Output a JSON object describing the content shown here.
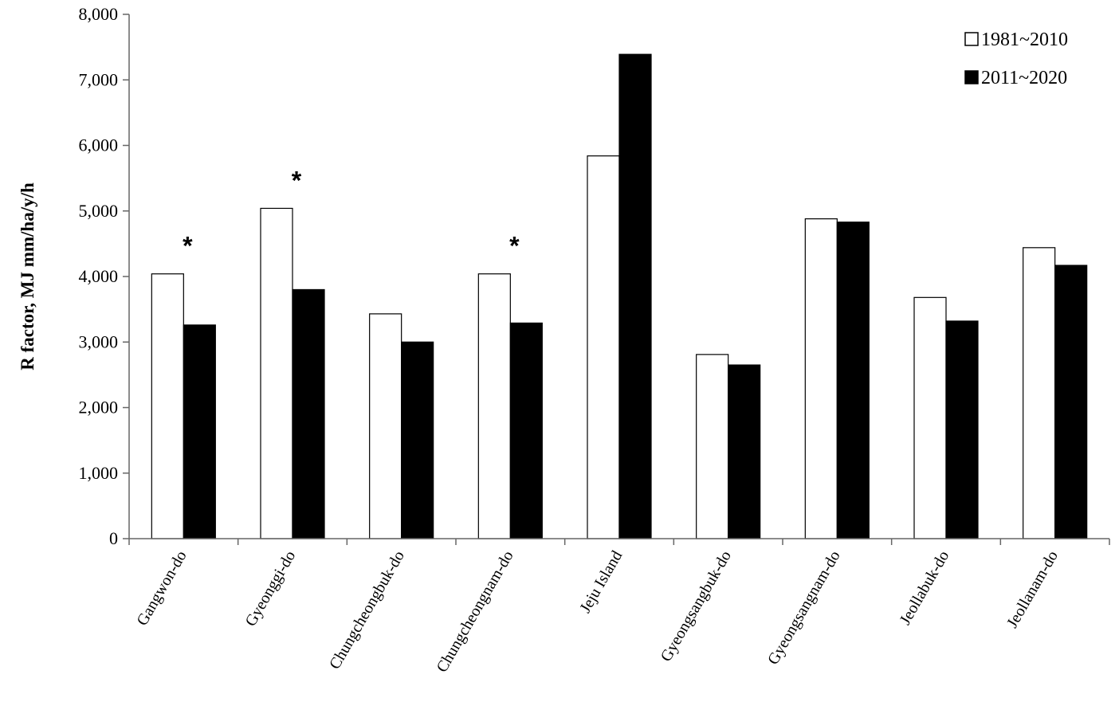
{
  "chart_data": {
    "type": "bar",
    "ylabel": "R factor, MJ mm/ha/y/h",
    "ylim": [
      0,
      8000
    ],
    "yticks": [
      0,
      1000,
      2000,
      3000,
      4000,
      5000,
      6000,
      7000,
      8000
    ],
    "ytick_labels": [
      "0",
      "1,000",
      "2,000",
      "3,000",
      "4,000",
      "5,000",
      "6,000",
      "7,000",
      "8,000"
    ],
    "categories": [
      "Gangwon-do",
      "Gyeonggi-do",
      "Chungcheongbuk-do",
      "Chungcheongnam-do",
      "Jeju Island",
      "Gyeongsangbuk-do",
      "Gyeongsangnam-do",
      "Jeollabuk-do",
      "Jeollanam-do"
    ],
    "series": [
      {
        "name": "1981~2010",
        "color": "#ffffff",
        "values": [
          4040,
          5040,
          3430,
          4040,
          5840,
          2810,
          4880,
          3680,
          4440
        ]
      },
      {
        "name": "2011~2020",
        "color": "#000000",
        "values": [
          3260,
          3800,
          3000,
          3290,
          7390,
          2650,
          4830,
          3320,
          4170
        ]
      }
    ],
    "significance": {
      "symbol": "*",
      "categories": [
        "Gangwon-do",
        "Gyeonggi-do",
        "Chungcheongnam-do"
      ]
    },
    "legend_position": "top-right",
    "grid": false
  }
}
